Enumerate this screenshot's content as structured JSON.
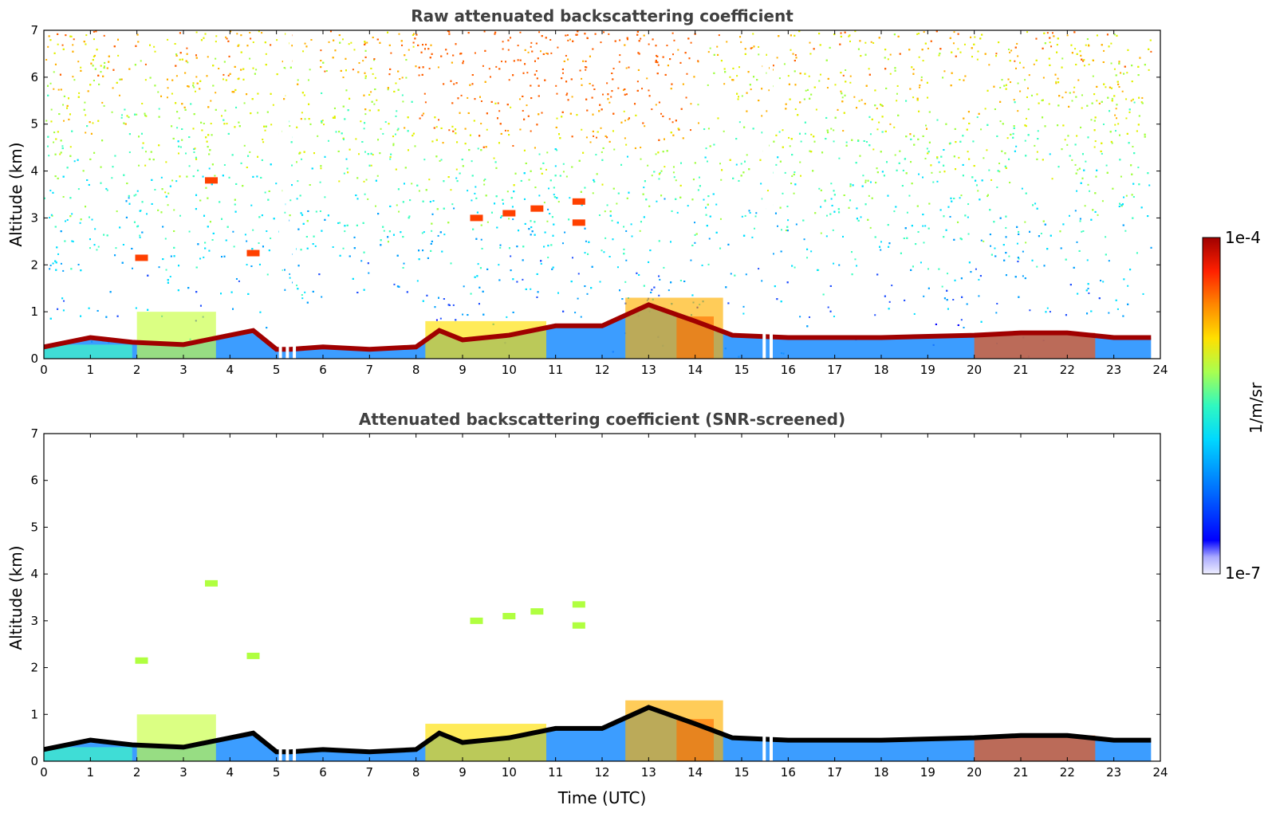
{
  "chart_data": [
    {
      "type": "heatmap",
      "title": "Raw attenuated backscattering coefficient",
      "xlabel": "",
      "ylabel": "Altitude (km)",
      "xlim": [
        0,
        24
      ],
      "ylim": [
        0,
        7
      ],
      "x_ticks": [
        0,
        1,
        2,
        3,
        4,
        5,
        6,
        7,
        8,
        9,
        10,
        11,
        12,
        13,
        14,
        15,
        16,
        17,
        18,
        19,
        20,
        21,
        22,
        23,
        24
      ],
      "y_ticks": [
        0,
        1,
        2,
        3,
        4,
        5,
        6,
        7
      ],
      "screened": false,
      "boundary_layer_top_km": [
        [
          0,
          0.25
        ],
        [
          1,
          0.45
        ],
        [
          1.9,
          0.35
        ],
        [
          3,
          0.3
        ],
        [
          4,
          0.5
        ],
        [
          4.5,
          0.6
        ],
        [
          5,
          0.2
        ],
        [
          5.3,
          0.2
        ],
        [
          6,
          0.25
        ],
        [
          7,
          0.2
        ],
        [
          8,
          0.25
        ],
        [
          8.5,
          0.6
        ],
        [
          9,
          0.4
        ],
        [
          10,
          0.5
        ],
        [
          11,
          0.7
        ],
        [
          12,
          0.7
        ],
        [
          13,
          1.15
        ],
        [
          14,
          0.8
        ],
        [
          14.8,
          0.5
        ],
        [
          16,
          0.45
        ],
        [
          18,
          0.45
        ],
        [
          20,
          0.5
        ],
        [
          21,
          0.55
        ],
        [
          22,
          0.55
        ],
        [
          23,
          0.45
        ],
        [
          23.8,
          0.45
        ]
      ],
      "cloud_features": [
        {
          "t": 2.1,
          "alt_km": 2.15
        },
        {
          "t": 3.6,
          "alt_km": 3.8
        },
        {
          "t": 4.5,
          "alt_km": 2.25
        },
        {
          "t": 9.3,
          "alt_km": 3.0
        },
        {
          "t": 10.0,
          "alt_km": 3.1
        },
        {
          "t": 10.6,
          "alt_km": 3.2
        },
        {
          "t": 11.5,
          "alt_km": 3.35
        },
        {
          "t": 11.5,
          "alt_km": 2.9
        }
      ],
      "data_gaps_utc": [
        5.05,
        5.2,
        5.35,
        15.45,
        15.6
      ]
    },
    {
      "type": "heatmap",
      "title": "Attenuated backscattering coefficient (SNR-screened)",
      "xlabel": "Time (UTC)",
      "ylabel": "Altitude (km)",
      "xlim": [
        0,
        24
      ],
      "ylim": [
        0,
        7
      ],
      "x_ticks": [
        0,
        1,
        2,
        3,
        4,
        5,
        6,
        7,
        8,
        9,
        10,
        11,
        12,
        13,
        14,
        15,
        16,
        17,
        18,
        19,
        20,
        21,
        22,
        23,
        24
      ],
      "y_ticks": [
        0,
        1,
        2,
        3,
        4,
        5,
        6,
        7
      ],
      "screened": true
    }
  ],
  "colorbar": {
    "label": "1/m/sr",
    "min_label": "1e-7",
    "max_label": "1e-4",
    "scale": "log",
    "colormap": [
      "#e6e6fa",
      "#9999ff",
      "#0000ff",
      "#0080ff",
      "#00e0ff",
      "#40ffb0",
      "#b0ff40",
      "#ffe000",
      "#ff8000",
      "#ff2000",
      "#a00000"
    ]
  }
}
